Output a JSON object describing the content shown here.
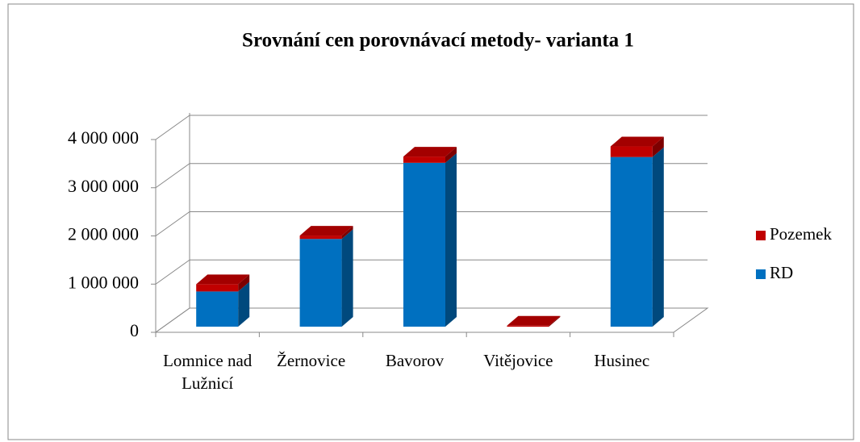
{
  "chart_data": {
    "type": "bar3d_stacked",
    "title": "Srovnání cen porovnávací metody- varianta 1",
    "categories": [
      "Lomnice nad Lužnicí",
      "Žernovice",
      "Bavorov",
      "Vitějovice",
      "Husinec"
    ],
    "series": [
      {
        "name": "RD",
        "color": "#0070c0",
        "values": [
          730000,
          1820000,
          3400000,
          0,
          3520000
        ]
      },
      {
        "name": "Pozemek",
        "color": "#c00000",
        "values": [
          150000,
          70000,
          130000,
          20000,
          220000
        ]
      }
    ],
    "ylim": [
      0,
      4000000
    ],
    "yticks": [
      0,
      {
        "value": 1000000,
        "label": "1 000 000"
      },
      {
        "value": 2000000,
        "label": "2 000 000"
      },
      {
        "value": 3000000,
        "label": "3 000 000"
      },
      {
        "value": 4000000,
        "label": "4 000 000"
      }
    ],
    "grid": true,
    "legend": "right"
  }
}
